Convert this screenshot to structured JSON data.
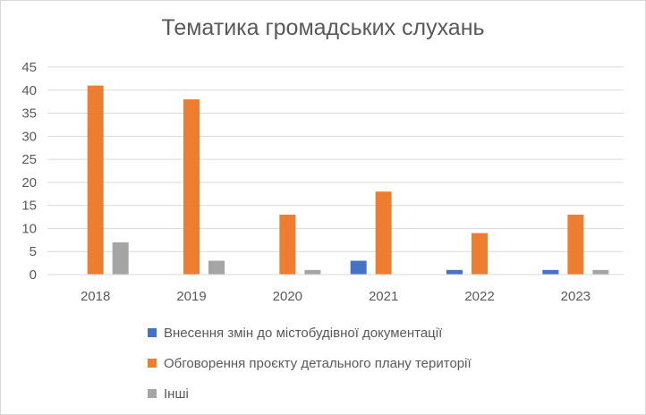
{
  "chart_data": {
    "type": "bar",
    "title": "Тематика громадських слухань",
    "categories": [
      "2018",
      "2019",
      "2020",
      "2021",
      "2022",
      "2023"
    ],
    "series": [
      {
        "name": "Внесення змін до містобудівної документації",
        "color": "#4472c4",
        "values": [
          0,
          0,
          0,
          3,
          1,
          1
        ]
      },
      {
        "name": "Обговорення проєкту детального плану території",
        "color": "#ed7d31",
        "values": [
          41,
          38,
          13,
          18,
          9,
          13
        ]
      },
      {
        "name": "Інші",
        "color": "#a5a5a5",
        "values": [
          7,
          3,
          1,
          0,
          0,
          1
        ]
      }
    ],
    "yticks": [
      "0",
      "5",
      "10",
      "15",
      "20",
      "25",
      "30",
      "35",
      "40",
      "45"
    ],
    "ylim": [
      0,
      45
    ],
    "grid": true,
    "legend_position": "bottom"
  }
}
